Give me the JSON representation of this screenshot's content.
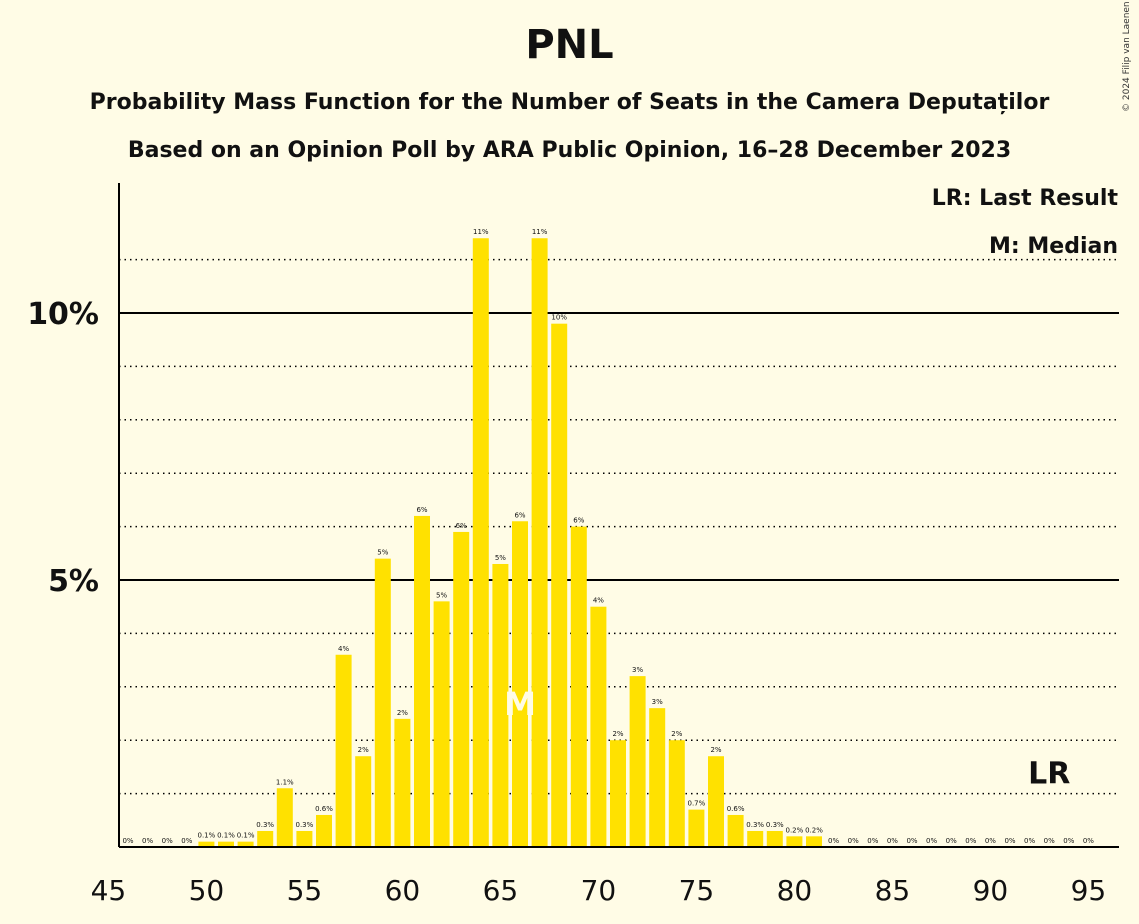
{
  "header": {
    "title": "PNL",
    "subtitle1": "Probability Mass Function for the Number of Seats in the Camera Deputaților",
    "subtitle2": "Based on an Opinion Poll by ARA Public Opinion, 16–28 December 2023",
    "copyright": "© 2024 Filip van Laenen"
  },
  "legend": {
    "lr": "LR: Last Result",
    "m": "M: Median"
  },
  "colors": {
    "bar": "#FFE100",
    "background": "#FFFCE6",
    "axis": "#000000"
  },
  "chart_data": {
    "type": "bar",
    "title": "PNL",
    "categories": [
      46,
      47,
      48,
      49,
      50,
      51,
      52,
      53,
      54,
      55,
      56,
      57,
      58,
      59,
      60,
      61,
      62,
      63,
      64,
      65,
      66,
      67,
      68,
      69,
      70,
      71,
      72,
      73,
      74,
      75,
      76,
      77,
      78,
      79,
      80,
      81,
      82,
      83,
      84,
      85,
      86,
      87,
      88,
      89,
      90,
      91,
      92,
      93,
      94,
      95
    ],
    "values": [
      0,
      0,
      0,
      0,
      0.1,
      0.1,
      0.1,
      0.3,
      1.1,
      0.3,
      0.6,
      3.6,
      1.7,
      5.4,
      2.4,
      6.2,
      4.6,
      5.9,
      11.4,
      5.3,
      6.1,
      11.4,
      9.8,
      6.0,
      4.5,
      2.0,
      3.2,
      2.6,
      2.0,
      0.7,
      1.7,
      0.6,
      0.3,
      0.3,
      0.2,
      0.2,
      0,
      0,
      0,
      0,
      0,
      0,
      0,
      0,
      0,
      0,
      0,
      0,
      0,
      0
    ],
    "labels": [
      "0%",
      "0%",
      "0%",
      "0%",
      "0.1%",
      "0.1%",
      "0.1%",
      "0.3%",
      "1.1%",
      "0.3%",
      "0.6%",
      "4%",
      "2%",
      "5%",
      "2%",
      "6%",
      "5%",
      "6%",
      "11%",
      "5%",
      "6%",
      "11%",
      "10%",
      "6%",
      "4%",
      "2%",
      "3%",
      "3%",
      "2%",
      "0.7%",
      "2%",
      "0.6%",
      "0.3%",
      "0.3%",
      "0.2%",
      "0.2%",
      "0%",
      "0%",
      "0%",
      "0%",
      "0%",
      "0%",
      "0%",
      "0%",
      "0%",
      "0%",
      "0%",
      "0%",
      "0%",
      "0%"
    ],
    "x_ticks": [
      "45",
      "50",
      "55",
      "60",
      "65",
      "70",
      "75",
      "80",
      "85",
      "90",
      "95"
    ],
    "y_ticks": [
      "5%",
      "10%"
    ],
    "ylim": [
      0,
      12.4
    ],
    "xlim": [
      45,
      95
    ],
    "grid": "dotted every 1%, solid at 5% and 10%",
    "median": 66,
    "median_label": "M",
    "last_result": 93,
    "last_result_label": "LR"
  }
}
